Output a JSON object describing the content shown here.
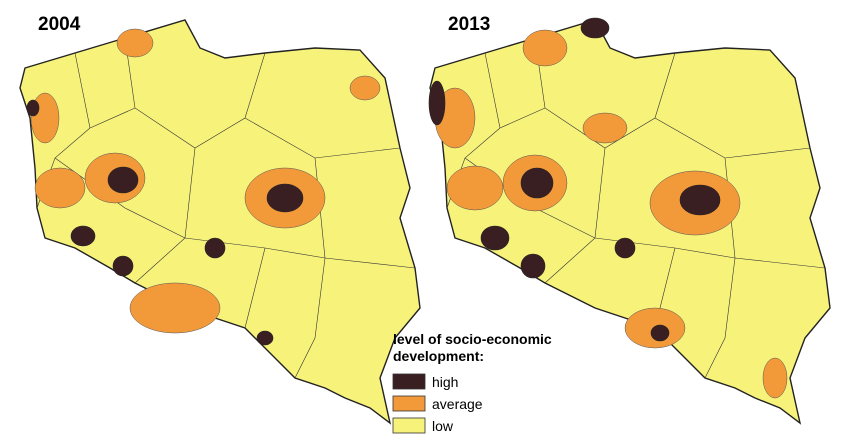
{
  "maps": [
    {
      "title": "2004"
    },
    {
      "title": "2013"
    }
  ],
  "legend": {
    "title_lines": [
      "level of socio-economic",
      "development:"
    ],
    "items": [
      {
        "label": "high",
        "color": "#3a1f22"
      },
      {
        "label": "average",
        "color": "#f29a3a"
      },
      {
        "label": "low",
        "color": "#f7f27a"
      }
    ]
  }
}
